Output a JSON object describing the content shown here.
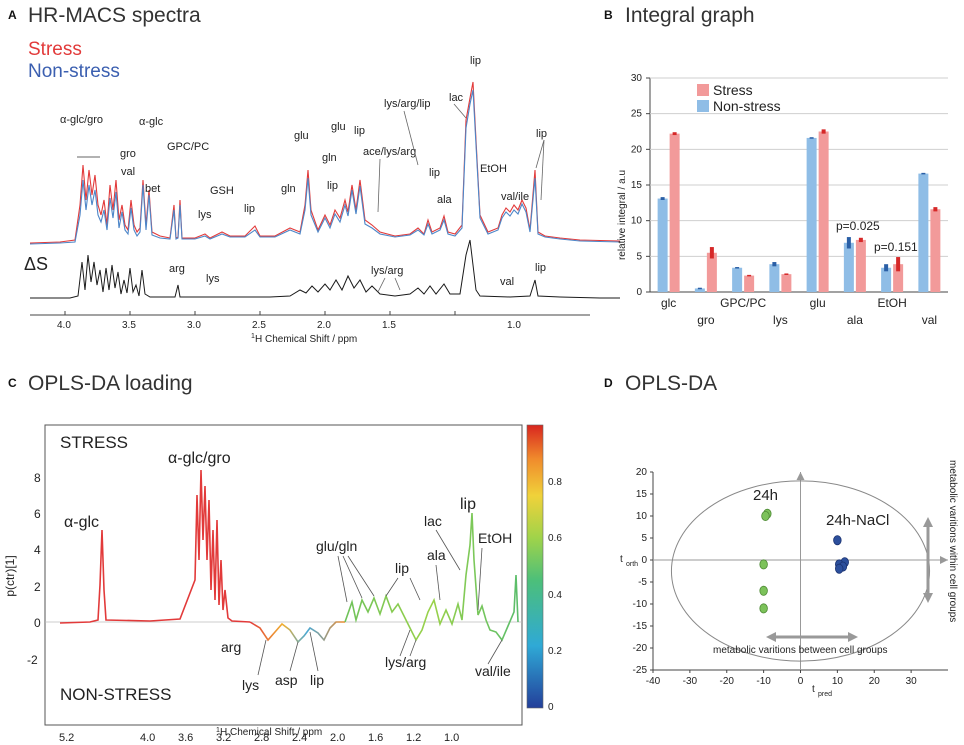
{
  "panel_a": {
    "letter": "A",
    "title": "HR-MACS spectra",
    "legend_stress": "Stress",
    "legend_nonstress": "Non-stress",
    "delta_label": "ΔS",
    "xlabel_sup": "1",
    "xlabel": "H Chemical Shift / ppm",
    "x_ticks": [
      "4.0",
      "3.5",
      "3.0",
      "2.5",
      "2.0",
      "1.5",
      "1.0"
    ],
    "upper_labels": [
      "α-glc/gro",
      "gro",
      "α-glc",
      "val",
      "bet",
      "GPC/PC",
      "GSH",
      "lys",
      "lip",
      "gln",
      "glu",
      "gln",
      "lip",
      "glu",
      "lip",
      "ace/lys/arg",
      "lys/arg/lip",
      "lac",
      "lip",
      "lip",
      "ala",
      "EtOH",
      "val/ile",
      "lip"
    ],
    "lower_labels": [
      "arg",
      "lys",
      "lys/arg",
      "val",
      "lip"
    ]
  },
  "panel_b": {
    "letter": "B",
    "title": "Integral graph",
    "ylabel": "relative integral / a.u",
    "legend_stress": "Stress",
    "legend_nonstress": "Non-stress",
    "annotations": [
      "p=0.025",
      "p=0.151"
    ]
  },
  "panel_c": {
    "letter": "C",
    "title": "OPLS-DA loading",
    "ylabel": "p(ctr)[1]",
    "top_text": "STRESS",
    "bottom_text": "NON-STRESS",
    "xlabel_sup": "1",
    "xlabel": "H Chemical Shift / ppm",
    "colorbar_ticks": [
      "0.8",
      "0.6",
      "0.4",
      "0.2",
      "0"
    ],
    "labels": [
      "α-glc",
      "α-glc/gro",
      "arg",
      "lys",
      "asp",
      "lip",
      "glu/gln",
      "lip",
      "lys/arg",
      "ala",
      "lac",
      "lip",
      "EtOH",
      "val/ile"
    ]
  },
  "panel_d": {
    "letter": "D",
    "title": "OPLS-DA",
    "group_24h": "24h",
    "group_nacl": "24h-NaCl",
    "x_axis_symbol": "t",
    "x_axis_sub": "pred",
    "y_axis_symbol": "t",
    "y_axis_sub": "orth",
    "between_text": "metabolic varitions between cell groups",
    "within_text": "metabolic varitions within cell groups"
  },
  "colors": {
    "stress": "#e23a3a",
    "nonstress": "#4d86c8",
    "bar_stress": "#f29a9a",
    "bar_nonstress": "#8fbde6",
    "dot_green": "#7cc25a",
    "dot_blue": "#2c4f9c"
  },
  "chart_data": [
    {
      "id": "integral",
      "type": "bar",
      "title": "Integral graph",
      "ylabel": "relative integral / a.u",
      "categories": [
        "glc",
        "gro",
        "GPC/PC",
        "lys",
        "glu",
        "ala",
        "EtOH",
        "val"
      ],
      "series": [
        {
          "name": "Non-stress",
          "values": [
            13.1,
            0.5,
            3.4,
            3.9,
            21.6,
            6.9,
            3.4,
            16.6
          ],
          "errors": [
            0.2,
            0.1,
            0.1,
            0.3,
            0.1,
            0.8,
            0.5,
            0.1
          ]
        },
        {
          "name": "Stress",
          "values": [
            22.2,
            5.5,
            2.3,
            2.5,
            22.5,
            7.3,
            3.9,
            11.6
          ],
          "errors": [
            0.2,
            0.8,
            0.1,
            0.1,
            0.3,
            0.3,
            1.0,
            0.3
          ]
        }
      ],
      "ylim": [
        0,
        30
      ],
      "yticks": [
        0,
        5,
        10,
        15,
        20,
        25,
        30
      ]
    },
    {
      "id": "scores",
      "type": "scatter",
      "title": "OPLS-DA",
      "xlim": [
        -40,
        40
      ],
      "ylim": [
        -25,
        20
      ],
      "xticks": [
        -40,
        -30,
        -20,
        -10,
        0,
        10,
        20,
        30
      ],
      "yticks": [
        -25,
        -20,
        -15,
        -10,
        -5,
        0,
        5,
        10,
        15,
        20
      ],
      "series": [
        {
          "name": "24h",
          "points": [
            [
              -9,
              10.5
            ],
            [
              -9.5,
              10
            ],
            [
              -10,
              -1
            ],
            [
              -10,
              -7
            ],
            [
              -10,
              -11
            ]
          ]
        },
        {
          "name": "24h-NaCl",
          "points": [
            [
              10,
              4.5
            ],
            [
              12,
              -0.5
            ],
            [
              10.5,
              -1
            ],
            [
              11.5,
              -1.5
            ],
            [
              10.5,
              -2
            ]
          ]
        }
      ]
    }
  ]
}
